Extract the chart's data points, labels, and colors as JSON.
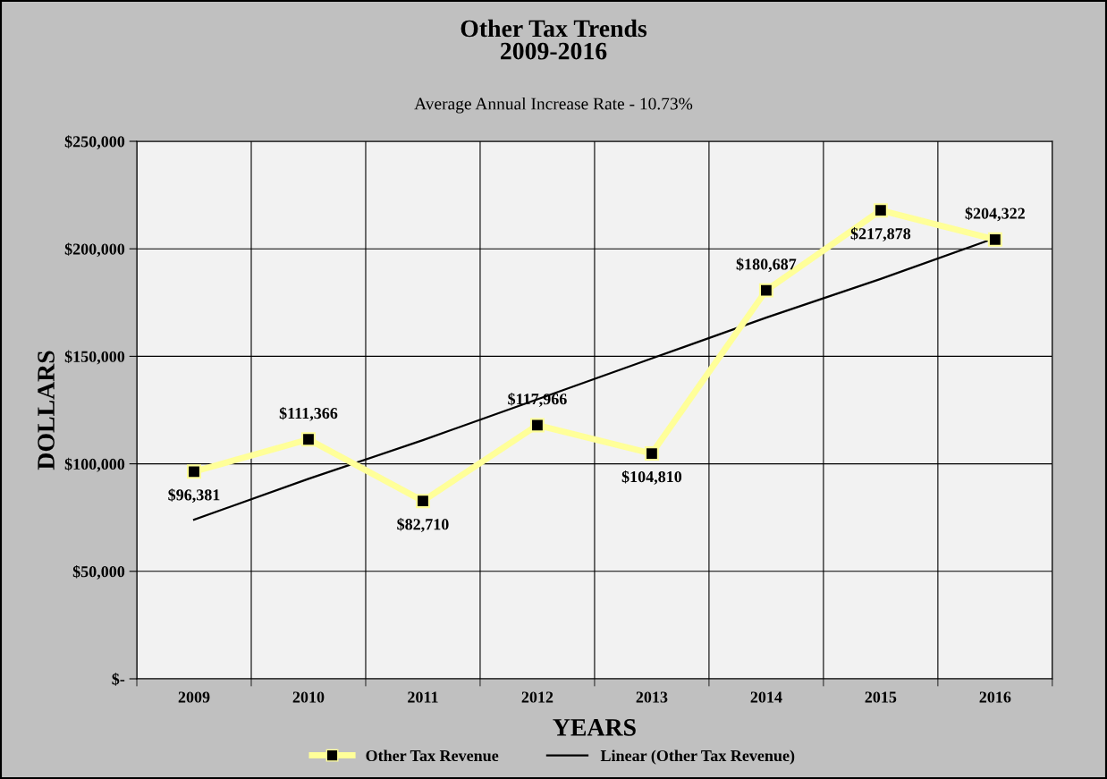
{
  "chart_data": {
    "type": "line",
    "title": "Other Tax Trends\n2009-2016",
    "subtitle": "Average Annual Increase Rate - 10.73%",
    "xlabel": "YEARS",
    "ylabel": "DOLLARS",
    "categories": [
      "2009",
      "2010",
      "2011",
      "2012",
      "2013",
      "2014",
      "2015",
      "2016"
    ],
    "series": [
      {
        "name": "Other Tax Revenue",
        "color": "#ffff99",
        "marker": "square",
        "values": [
          96381,
          111366,
          82710,
          117966,
          104810,
          180687,
          217878,
          204322
        ],
        "value_labels": [
          "$96,381",
          "$111,366",
          "$82,710",
          "$117,966",
          "$104,810",
          "$180,687",
          "$217,878",
          "$204,322"
        ]
      },
      {
        "name": "Linear (Other Tax Revenue)",
        "color": "#000000",
        "values": [
          74000,
          93000,
          111000,
          130000,
          149000,
          168000,
          186000,
          205000
        ]
      }
    ],
    "ylim": [
      0,
      250000
    ],
    "yticks": [
      {
        "value": 0,
        "label": "$-"
      },
      {
        "value": 50000,
        "label": "$50,000"
      },
      {
        "value": 100000,
        "label": "$100,000"
      },
      {
        "value": 150000,
        "label": "$150,000"
      },
      {
        "value": 200000,
        "label": "$200,000"
      },
      {
        "value": 250000,
        "label": "$250,000"
      }
    ],
    "grid": true,
    "legend": "bottom"
  }
}
